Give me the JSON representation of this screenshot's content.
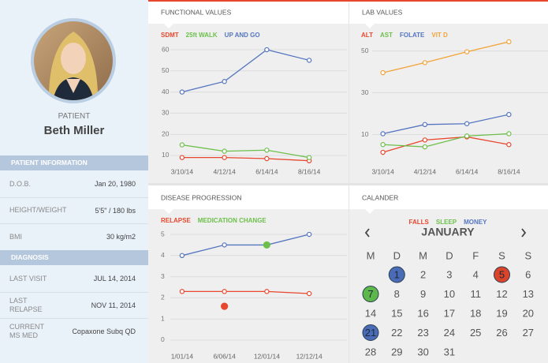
{
  "patient": {
    "label": "PATIENT",
    "name": "Beth Miller"
  },
  "sections": [
    {
      "title": "PATIENT INFORMATION",
      "rows": [
        {
          "label": "D.O.B.",
          "value": "Jan 20, 1980"
        },
        {
          "label": "HEIGHT/WEIGHT",
          "value": "5'5\" / 180 lbs"
        },
        {
          "label": "BMI",
          "value": "30 kg/m2"
        }
      ]
    },
    {
      "title": "DIAGNOSIS",
      "rows": [
        {
          "label": "LAST VISIT",
          "value": "JUL 14, 2014"
        },
        {
          "label": "LAST RELAPSE",
          "value": "NOV 11, 2014"
        },
        {
          "label": "CURRENT MS MED",
          "value": "Copaxone Subq QD"
        }
      ]
    }
  ],
  "chart_data": [
    {
      "type": "line",
      "title": "FUNCTIONAL VALUES",
      "categories": [
        "3/10/14",
        "4/12/14",
        "6/14/14",
        "8/16/14"
      ],
      "series": [
        {
          "name": "SDMT",
          "color": "#e8472e",
          "values": [
            9,
            9,
            8.5,
            7.5
          ]
        },
        {
          "name": "25ft WALK",
          "color": "#6cc04a",
          "values": [
            15,
            12,
            12.5,
            9
          ]
        },
        {
          "name": "UP AND GO",
          "color": "#5575c0",
          "values": [
            40,
            45,
            60,
            55
          ]
        }
      ],
      "ylim": [
        6,
        64
      ],
      "yticks": [
        10,
        20,
        30,
        40,
        50,
        60
      ],
      "grid": true
    },
    {
      "type": "line",
      "title": "LAB VALUES",
      "categories": [
        "3/10/14",
        "4/12/14",
        "6/14/14",
        "8/16/14"
      ],
      "series": [
        {
          "name": "ALT",
          "color": "#e8472e",
          "values": [
            1.5,
            7.4,
            8.9,
            5.2
          ]
        },
        {
          "name": "AST",
          "color": "#6cc04a",
          "values": [
            5.2,
            4.1,
            9.3,
            10.4
          ]
        },
        {
          "name": "FOLATE",
          "color": "#5575c0",
          "values": [
            10.4,
            14.8,
            15.2,
            19.6
          ]
        },
        {
          "name": "VIT D",
          "color": "#f2a33a",
          "values": [
            39.6,
            44.4,
            49.6,
            54.4
          ]
        }
      ],
      "ylim": [
        0,
        58
      ],
      "yticks": [
        10,
        30,
        50
      ],
      "grid": true
    },
    {
      "type": "line",
      "title": "DISEASE PROGRESSION",
      "categories": [
        "1/01/14",
        "6/06/14",
        "12/01/14",
        "12/12/14"
      ],
      "series": [
        {
          "color": "#5575c0",
          "values": [
            4,
            4.5,
            4.5,
            5
          ]
        },
        {
          "name": "RELAPSE",
          "color": "#e8472e",
          "values": [
            2.3,
            2.3,
            2.3,
            2.2
          ]
        },
        {
          "color": "#e8472e",
          "values": [
            null,
            1.6,
            null,
            null
          ],
          "line": false,
          "marker": "filled"
        },
        {
          "name": "MEDICATION CHANGE",
          "color": "#6cc04a",
          "values": [
            null,
            null,
            4.5,
            null
          ],
          "line": false,
          "marker": "filled"
        }
      ],
      "ylim": [
        -0.4,
        5.4
      ],
      "yticks": [
        0,
        1,
        2,
        3,
        4,
        5
      ],
      "grid": true
    }
  ],
  "calendar": {
    "title": "CALANDER",
    "legend": [
      {
        "name": "FALLS",
        "color": "#e8472e"
      },
      {
        "name": "SLEEP",
        "color": "#6cc04a"
      },
      {
        "name": "MONEY",
        "color": "#5575c0"
      }
    ],
    "month": "JANUARY",
    "weekdays": [
      "M",
      "D",
      "M",
      "D",
      "F",
      "S",
      "S"
    ],
    "weeks": [
      [
        null,
        1,
        2,
        3,
        4,
        5,
        6
      ],
      [
        7,
        8,
        9,
        10,
        11,
        12,
        13
      ],
      [
        14,
        15,
        16,
        17,
        18,
        19,
        20
      ],
      [
        21,
        22,
        23,
        24,
        25,
        26,
        27
      ],
      [
        28,
        29,
        30,
        31,
        null,
        null,
        null
      ]
    ],
    "highlights": [
      {
        "day": 1,
        "color": "#4a6bb5"
      },
      {
        "day": 5,
        "color": "#d9442b"
      },
      {
        "day": 7,
        "color": "#5cb84a"
      },
      {
        "day": 21,
        "color": "#4a6bb5"
      }
    ]
  }
}
